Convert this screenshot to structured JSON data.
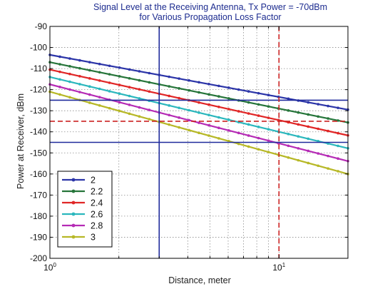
{
  "chart_data": {
    "type": "line",
    "title": "Signal Level at the Receiving Antenna, Tx Power = -70dBm",
    "subtitle": "for Various Propagation Loss Factor",
    "xlabel": "Distance, meter",
    "ylabel": "Power at Receiver, dBm",
    "x_scale": "log",
    "xlim": [
      1,
      20
    ],
    "ylim": [
      -200,
      -90
    ],
    "x_ticks": [
      {
        "base": "10",
        "exp": "0",
        "value": 1
      },
      {
        "base": "10",
        "exp": "1",
        "value": 10
      }
    ],
    "y_ticks": [
      "-90",
      "-100",
      "-110",
      "-120",
      "-130",
      "-140",
      "-150",
      "-160",
      "-170",
      "-180",
      "-190",
      "-200"
    ],
    "grid": true,
    "legend_position": "bottom-left",
    "series": [
      {
        "name": "2",
        "color": "#2c35a8",
        "x": [
          1,
          20
        ],
        "y": [
          -103.5,
          -129.5
        ]
      },
      {
        "name": "2.2",
        "color": "#26753a",
        "x": [
          1,
          20
        ],
        "y": [
          -107,
          -135.6
        ]
      },
      {
        "name": "2.4",
        "color": "#e02626",
        "x": [
          1,
          20
        ],
        "y": [
          -110.5,
          -141.7
        ]
      },
      {
        "name": "2.6",
        "color": "#2bb7bd",
        "x": [
          1,
          20
        ],
        "y": [
          -114,
          -147.8
        ]
      },
      {
        "name": "2.8",
        "color": "#b52bb5",
        "x": [
          1,
          20
        ],
        "y": [
          -117.5,
          -153.9
        ]
      },
      {
        "name": "3",
        "color": "#b7b827",
        "x": [
          1,
          20
        ],
        "y": [
          -121,
          -160
        ]
      }
    ],
    "reference_lines": [
      {
        "orientation": "horizontal",
        "value": -125,
        "color": "#1f2a9c",
        "dash": false
      },
      {
        "orientation": "horizontal",
        "value": -135,
        "color": "#cc2222",
        "dash": true
      },
      {
        "orientation": "horizontal",
        "value": -145,
        "color": "#1f2a9c",
        "dash": false
      },
      {
        "orientation": "vertical",
        "value": 3,
        "color": "#1f2a9c",
        "dash": false
      },
      {
        "orientation": "vertical",
        "value": 10,
        "color": "#cc2222",
        "dash": true
      }
    ]
  }
}
